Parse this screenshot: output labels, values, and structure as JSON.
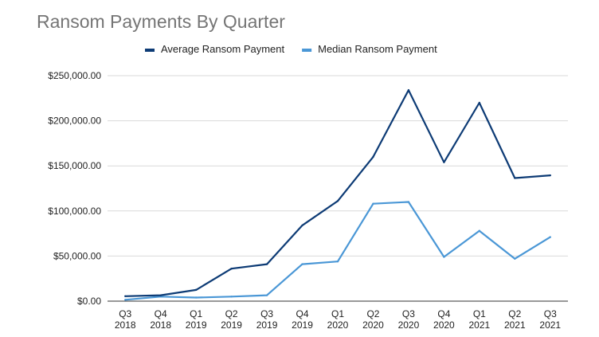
{
  "chart_data": {
    "type": "line",
    "title": "Ransom Payments By Quarter",
    "xlabel": "",
    "ylabel": "",
    "categories": [
      [
        "Q3",
        "2018"
      ],
      [
        "Q4",
        "2018"
      ],
      [
        "Q1",
        "2019"
      ],
      [
        "Q2",
        "2019"
      ],
      [
        "Q3",
        "2019"
      ],
      [
        "Q4",
        "2019"
      ],
      [
        "Q1",
        "2020"
      ],
      [
        "Q2",
        "2020"
      ],
      [
        "Q3",
        "2020"
      ],
      [
        "Q4",
        "2020"
      ],
      [
        "Q1",
        "2021"
      ],
      [
        "Q2",
        "2021"
      ],
      [
        "Q3",
        "2021"
      ]
    ],
    "ylim": [
      0,
      250000
    ],
    "yticks": [
      0,
      50000,
      100000,
      150000,
      200000,
      250000
    ],
    "ytick_labels": [
      "$0.00",
      "$50,000.00",
      "$100,000.00",
      "$150,000.00",
      "$200,000.00",
      "$250,000.00"
    ],
    "grid": true,
    "legend_position": "top",
    "series": [
      {
        "name": "Average Ransom Payment",
        "color": "#0d3b75",
        "values": [
          5500,
          6500,
          12500,
          36000,
          41000,
          84000,
          111000,
          160000,
          234000,
          154000,
          220000,
          136500,
          139500
        ]
      },
      {
        "name": "Median Ransom Payment",
        "color": "#4a97d6",
        "values": [
          1500,
          5000,
          4000,
          5000,
          6500,
          41000,
          44000,
          108000,
          110000,
          49000,
          78000,
          47000,
          71000
        ]
      }
    ]
  }
}
